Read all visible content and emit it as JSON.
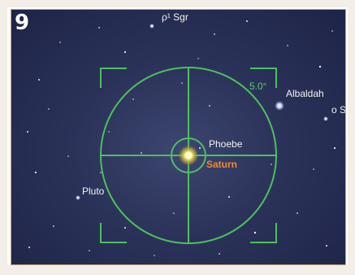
{
  "panel": {
    "number": "9"
  },
  "labels": {
    "rho_sgr": "ρ¹ Sgr",
    "albaldah": "Albaldah",
    "omicron_sgr": "o S",
    "phoebe": "Phoebe",
    "saturn": "Saturn",
    "pluto": "Pluto",
    "field_of_view": "5.0°"
  },
  "colors": {
    "sky": "#2b3259",
    "reticle": "#4fbf5e",
    "saturn_label": "#f08a2a",
    "border": "#c9a37a"
  },
  "icons": {
    "reticle": "finder-circle-crosshair",
    "saturn": "planet-glow"
  }
}
